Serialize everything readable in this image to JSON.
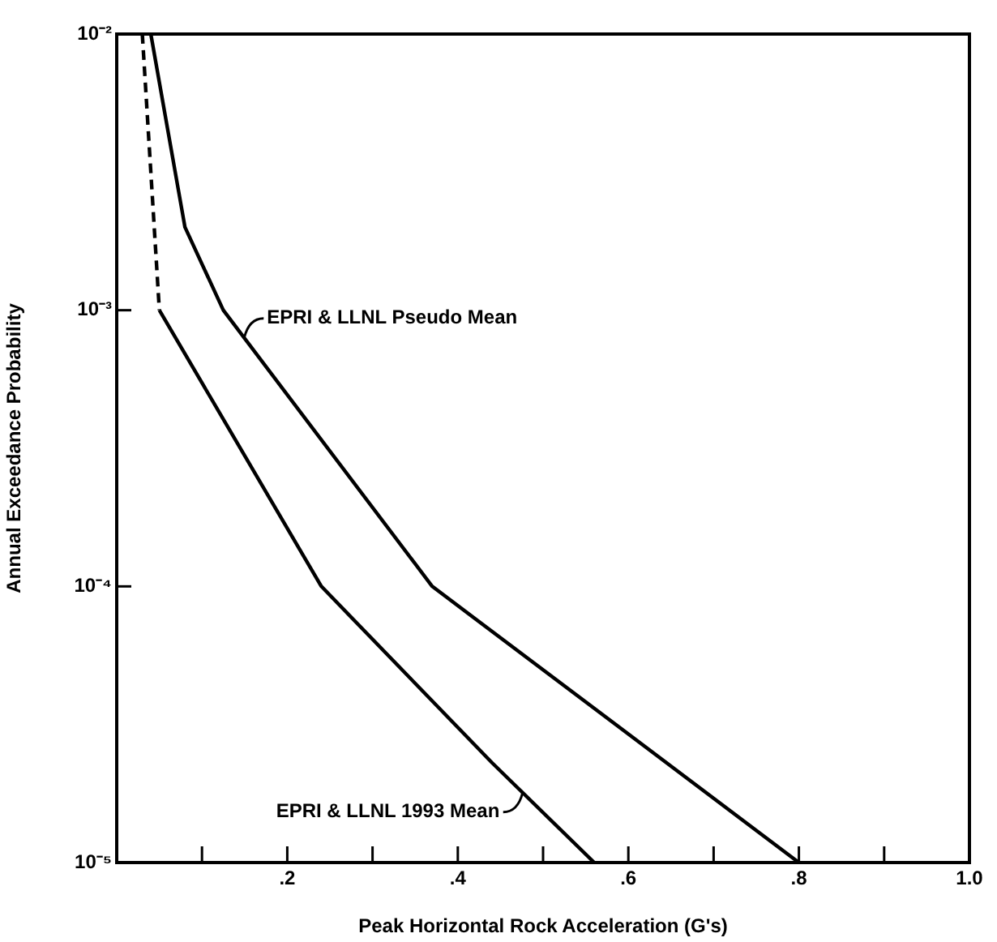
{
  "chart_data": {
    "type": "line",
    "xlabel": "Peak Horizontal Rock Acceleration (G's)",
    "ylabel": "Annual Exceedance Probability",
    "log": "y",
    "marker": "none",
    "xlim": [
      0,
      1
    ],
    "ylim": [
      1e-05,
      0.01
    ],
    "xticks": [
      {
        "value": 0.1,
        "label": null
      },
      {
        "value": 0.2,
        "label": ".2"
      },
      {
        "value": 0.3,
        "label": null
      },
      {
        "value": 0.4,
        "label": ".4"
      },
      {
        "value": 0.5,
        "label": null
      },
      {
        "value": 0.6,
        "label": ".6"
      },
      {
        "value": 0.7,
        "label": null
      },
      {
        "value": 0.8,
        "label": ".8"
      },
      {
        "value": 0.9,
        "label": null
      },
      {
        "value": 1,
        "label": "1.0"
      }
    ],
    "yticks": [
      {
        "value": 0.01,
        "label": "10⁻²"
      },
      {
        "value": 0.001,
        "label": "10⁻³"
      },
      {
        "value": 0.0001,
        "label": "10⁻⁴"
      },
      {
        "value": 1e-05,
        "label": "10⁻⁵"
      }
    ],
    "series": [
      {
        "name": "EPRI & LLNL Pseudo Mean",
        "color": "#000000",
        "line_style": "solid",
        "x": [
          0.04,
          0.08,
          0.125,
          0.37,
          0.8
        ],
        "values": [
          0.01,
          0.002,
          0.001,
          0.0001,
          1e-05
        ]
      },
      {
        "color": "#000000",
        "line_style": "dashed",
        "x": [
          0.03,
          0.05
        ],
        "values": [
          0.01,
          0.001
        ]
      },
      {
        "name": "EPRI & LLNL 1993 Mean",
        "color": "#000000",
        "line_style": "solid",
        "x": [
          0.05,
          0.24,
          0.44,
          0.56
        ],
        "values": [
          0.001,
          0.0001,
          2.3e-05,
          1e-05
        ]
      }
    ]
  }
}
